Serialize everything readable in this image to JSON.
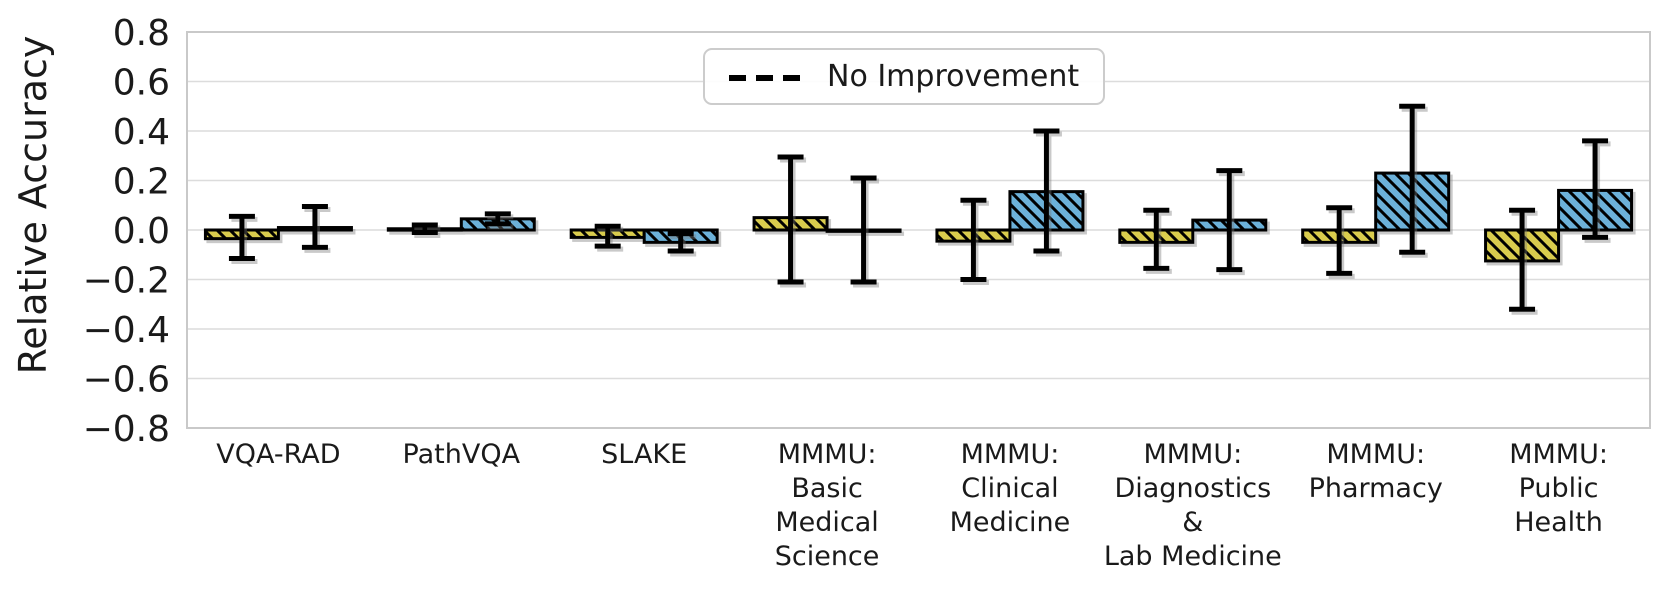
{
  "chart_data": {
    "type": "bar",
    "title": "",
    "xlabel": "",
    "ylabel": "Relative Accuracy",
    "ylim": [
      -0.8,
      0.8
    ],
    "yticks": [
      0.8,
      0.6,
      0.4,
      0.2,
      0.0,
      -0.2,
      -0.4,
      -0.6,
      -0.8
    ],
    "grid": true,
    "legend": {
      "label": "No Improvement",
      "line_style": "dashed",
      "position": "upper center"
    },
    "zero_line": {
      "value": 0.0,
      "style": "dashed",
      "color": "#000000"
    },
    "categories": [
      "VQA-RAD",
      "PathVQA",
      "SLAKE",
      "MMMU:\nBasic\nMedical\nScience",
      "MMMU:\nClinical\nMedicine",
      "MMMU:\nDiagnostics\n&\nLab Medicine",
      "MMMU:\nPharmacy",
      "MMMU:\nPublic\nHealth"
    ],
    "series": [
      {
        "name": "series-yellow",
        "color": "#d9cc4e",
        "hatch": "\\",
        "values": [
          -0.035,
          0.005,
          -0.03,
          0.05,
          -0.045,
          -0.05,
          -0.05,
          -0.125
        ],
        "err_low": [
          -0.115,
          -0.01,
          -0.065,
          -0.21,
          -0.2,
          -0.155,
          -0.175,
          -0.32
        ],
        "err_high": [
          0.055,
          0.02,
          0.015,
          0.295,
          0.12,
          0.08,
          0.09,
          0.08
        ]
      },
      {
        "name": "series-blue",
        "color": "#6cb1d9",
        "hatch": "\\",
        "values": [
          0.01,
          0.045,
          -0.05,
          -0.005,
          0.155,
          0.04,
          0.23,
          0.16
        ],
        "err_low": [
          -0.07,
          0.025,
          -0.085,
          -0.21,
          -0.085,
          -0.16,
          -0.09,
          -0.03
        ],
        "err_high": [
          0.095,
          0.065,
          -0.015,
          0.21,
          0.4,
          0.24,
          0.5,
          0.36
        ]
      }
    ],
    "colors": {
      "grid": "#dcdcdc",
      "spine": "#c9c9c9",
      "text": "#1a1a1a",
      "error_bar": "#000000"
    }
  }
}
